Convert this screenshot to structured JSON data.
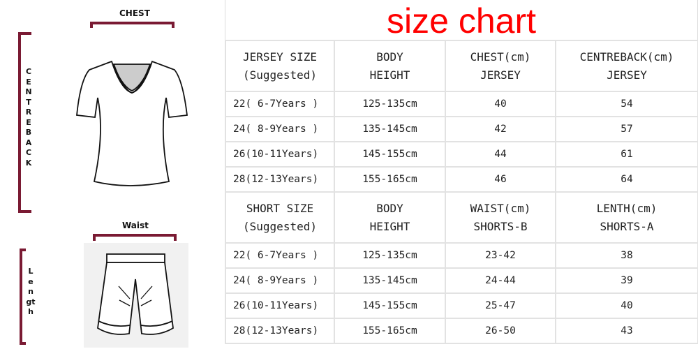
{
  "title": "size chart",
  "accent_color": "#7a1a33",
  "title_color": "#ff0000",
  "illustration": {
    "chest_label": "CHEST",
    "centre_back_label": "CENTRE BACK",
    "waist_label": "Waist",
    "length_label": "Length",
    "icons": [
      "v-neck-tshirt-icon",
      "shorts-icon"
    ]
  },
  "jersey": {
    "headers": [
      [
        "JERSEY SIZE",
        "(Suggested)"
      ],
      [
        "BODY",
        "HEIGHT"
      ],
      [
        "CHEST(cm)",
        "JERSEY"
      ],
      [
        "CENTREBACK(cm)",
        "JERSEY"
      ]
    ],
    "rows": [
      [
        "22( 6-7Years )",
        "125-135cm",
        "40",
        "54"
      ],
      [
        "24( 8-9Years )",
        "135-145cm",
        "42",
        "57"
      ],
      [
        "26(10-11Years)",
        "145-155cm",
        "44",
        "61"
      ],
      [
        "28(12-13Years)",
        "155-165cm",
        "46",
        "64"
      ]
    ]
  },
  "shorts": {
    "headers": [
      [
        "SHORT SIZE",
        "(Suggested)"
      ],
      [
        "BODY",
        "HEIGHT"
      ],
      [
        "WAIST(cm)",
        "SHORTS-B"
      ],
      [
        "LENTH(cm)",
        "SHORTS-A"
      ]
    ],
    "rows": [
      [
        "22( 6-7Years )",
        "125-135cm",
        "23-42",
        "38"
      ],
      [
        "24( 8-9Years )",
        "135-145cm",
        "24-44",
        "39"
      ],
      [
        "26(10-11Years)",
        "145-155cm",
        "25-47",
        "40"
      ],
      [
        "28(12-13Years)",
        "155-165cm",
        "26-50",
        "43"
      ]
    ]
  }
}
